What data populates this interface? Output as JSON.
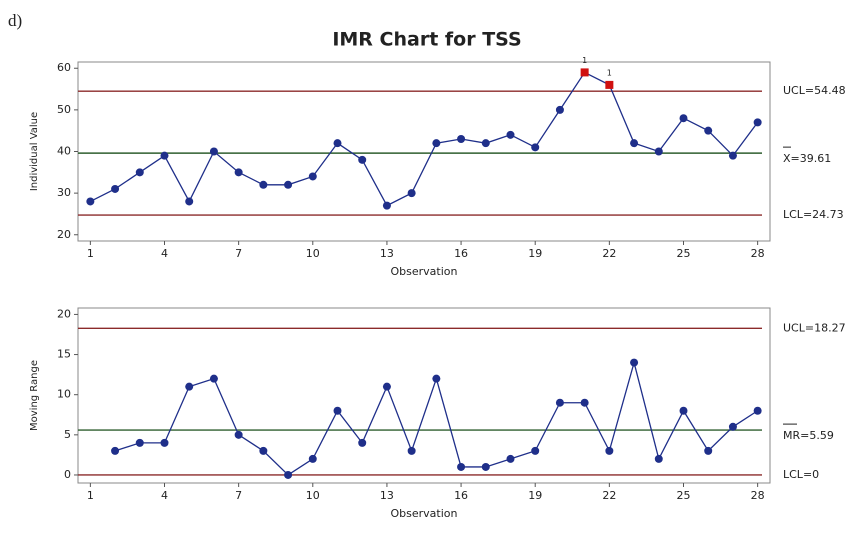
{
  "panel_label": "d)",
  "title": "IMR Chart for TSS",
  "chart_data": [
    {
      "type": "line",
      "ylabel": "Individual Value",
      "xlabel": "Observation",
      "x": [
        1,
        2,
        3,
        4,
        5,
        6,
        7,
        8,
        9,
        10,
        11,
        12,
        13,
        14,
        15,
        16,
        17,
        18,
        19,
        20,
        21,
        22,
        23,
        24,
        25,
        26,
        27,
        28
      ],
      "xlim": [
        0.5,
        28.5
      ],
      "xticks": [
        1,
        4,
        7,
        10,
        13,
        16,
        19,
        22,
        25,
        28
      ],
      "ylim": [
        18.5,
        61.5
      ],
      "yticks": [
        20,
        30,
        40,
        50,
        60
      ],
      "series": [
        {
          "name": "Individual Value",
          "color": "#1f2f8a",
          "values": [
            28,
            31,
            35,
            39,
            28,
            40,
            35,
            32,
            32,
            34,
            42,
            38,
            27,
            30,
            42,
            43,
            42,
            44,
            41,
            50,
            59,
            56,
            42,
            40,
            48,
            45,
            39,
            47
          ]
        }
      ],
      "flagged": [
        21,
        22
      ],
      "flag_color": "#d01010",
      "flag_label": "1",
      "control_lines": [
        {
          "label": "UCL=54.48",
          "value": 54.48,
          "color": "#8b2a2a"
        },
        {
          "label": "X=39.61",
          "value": 39.61,
          "color": "#2e5e2e",
          "bar": true
        },
        {
          "label": "LCL=24.73",
          "value": 24.73,
          "color": "#8b2a2a"
        }
      ]
    },
    {
      "type": "line",
      "ylabel": "Moving Range",
      "xlabel": "Observation",
      "x": [
        1,
        2,
        3,
        4,
        5,
        6,
        7,
        8,
        9,
        10,
        11,
        12,
        13,
        14,
        15,
        16,
        17,
        18,
        19,
        20,
        21,
        22,
        23,
        24,
        25,
        26,
        27,
        28
      ],
      "xlim": [
        0.5,
        28.5
      ],
      "xticks": [
        1,
        4,
        7,
        10,
        13,
        16,
        19,
        22,
        25,
        28
      ],
      "ylim": [
        -1,
        20.8
      ],
      "yticks": [
        0,
        5,
        10,
        15,
        20
      ],
      "series": [
        {
          "name": "Moving Range",
          "color": "#1f2f8a",
          "values": [
            null,
            3,
            4,
            4,
            11,
            12,
            5,
            3,
            0,
            2,
            8,
            4,
            11,
            3,
            12,
            1,
            1,
            2,
            3,
            9,
            9,
            3,
            14,
            2,
            8,
            3,
            6,
            8
          ]
        }
      ],
      "control_lines": [
        {
          "label": "UCL=18.27",
          "value": 18.27,
          "color": "#8b2a2a"
        },
        {
          "label": "MR=5.59",
          "value": 5.59,
          "color": "#2e5e2e",
          "bar": true
        },
        {
          "label": "LCL=0",
          "value": 0,
          "color": "#8b2a2a"
        }
      ]
    }
  ]
}
